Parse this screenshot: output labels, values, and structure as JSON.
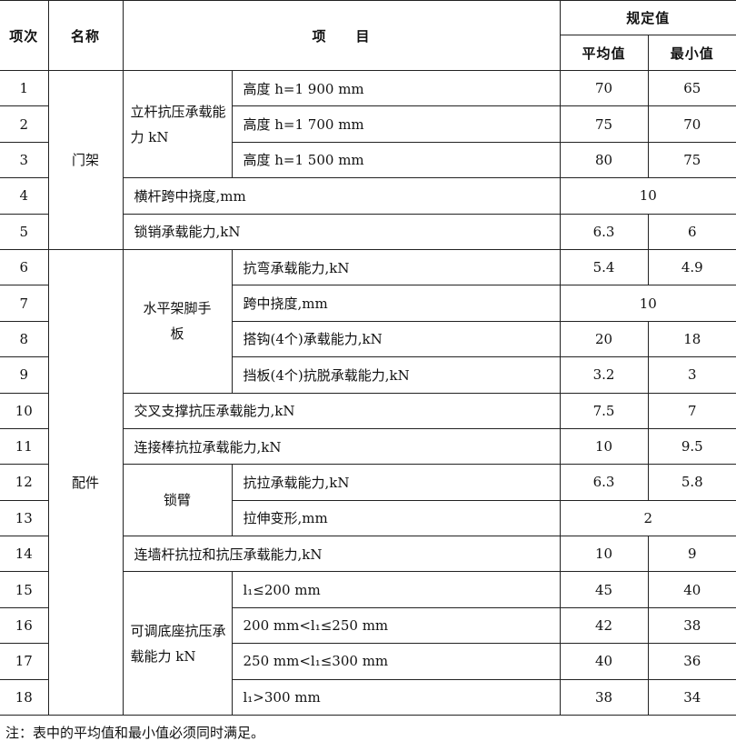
{
  "header": {
    "no": "项次",
    "name": "名称",
    "item": "项　　目",
    "spec": "规定值",
    "avg": "平均值",
    "min": "最小值"
  },
  "groups": {
    "frame": "门架",
    "fittings": "配件",
    "post": "立杆抗压承载能力 kN",
    "platform": "水平架脚手板",
    "lockarm": "锁臂",
    "base": "可调底座抗压承载能力 kN"
  },
  "rows": [
    {
      "no": "1",
      "item": "高度 h=1 900 mm",
      "avg": "70",
      "min": "65"
    },
    {
      "no": "2",
      "item": "高度 h=1 700 mm",
      "avg": "75",
      "min": "70"
    },
    {
      "no": "3",
      "item": "高度 h=1 500 mm",
      "avg": "80",
      "min": "75"
    },
    {
      "no": "4",
      "item": "横杆跨中挠度,mm",
      "value": "10"
    },
    {
      "no": "5",
      "item": "锁销承载能力,kN",
      "avg": "6.3",
      "min": "6"
    },
    {
      "no": "6",
      "item": "抗弯承载能力,kN",
      "avg": "5.4",
      "min": "4.9"
    },
    {
      "no": "7",
      "item": "跨中挠度,mm",
      "value": "10"
    },
    {
      "no": "8",
      "item": "搭钩(4个)承载能力,kN",
      "avg": "20",
      "min": "18"
    },
    {
      "no": "9",
      "item": "挡板(4个)抗脱承载能力,kN",
      "avg": "3.2",
      "min": "3"
    },
    {
      "no": "10",
      "item": "交叉支撑抗压承载能力,kN",
      "avg": "7.5",
      "min": "7"
    },
    {
      "no": "11",
      "item": "连接棒抗拉承载能力,kN",
      "avg": "10",
      "min": "9.5"
    },
    {
      "no": "12",
      "item": "抗拉承载能力,kN",
      "avg": "6.3",
      "min": "5.8"
    },
    {
      "no": "13",
      "item": "拉伸变形,mm",
      "value": "2"
    },
    {
      "no": "14",
      "item": "连墙杆抗拉和抗压承载能力,kN",
      "avg": "10",
      "min": "9"
    },
    {
      "no": "15",
      "item": "l₁≤200 mm",
      "avg": "45",
      "min": "40"
    },
    {
      "no": "16",
      "item": "200 mm<l₁≤250 mm",
      "avg": "42",
      "min": "38"
    },
    {
      "no": "17",
      "item": "250 mm<l₁≤300 mm",
      "avg": "40",
      "min": "36"
    },
    {
      "no": "18",
      "item": "l₁>300 mm",
      "avg": "38",
      "min": "34"
    }
  ],
  "note": "注：表中的平均值和最小值必须同时满足。"
}
